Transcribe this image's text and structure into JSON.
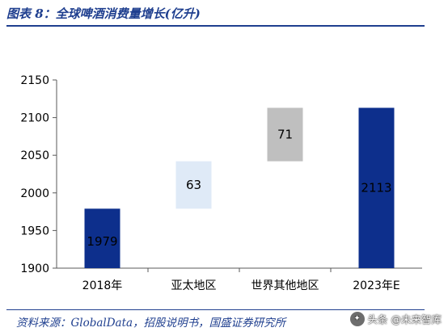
{
  "header": {
    "title": "图表 8：全球啤酒消费量增长(亿升)"
  },
  "footer": {
    "source": "资料来源：GlobalData，招股说明书，国盛证券研究所",
    "watermark": "头条 @未来智库"
  },
  "colors": {
    "title": "#1f3f8f",
    "base_bar": "#0d2f8c",
    "asia_pacific": "#dfeaf7",
    "other_regions": "#bfbfbf",
    "forecast_bar": "#0d2f8c"
  },
  "chart_data": {
    "type": "bar",
    "subtype": "waterfall",
    "title": "",
    "xlabel": "",
    "ylabel": "",
    "ylim": [
      1900,
      2150
    ],
    "yticks": [
      1900,
      1950,
      2000,
      2050,
      2100,
      2150
    ],
    "grid": false,
    "categories": [
      "2018年",
      "亚太地区",
      "世界其他地区",
      "2023年E"
    ],
    "bars": [
      {
        "category": "2018年",
        "kind": "total",
        "start": 1900,
        "end": 1979,
        "label": "1979",
        "color": "#0d2f8c"
      },
      {
        "category": "亚太地区",
        "kind": "increase",
        "start": 1979,
        "end": 2042,
        "label": "63",
        "color": "#dfeaf7"
      },
      {
        "category": "世界其他地区",
        "kind": "increase",
        "start": 2042,
        "end": 2113,
        "label": "71",
        "color": "#bfbfbf"
      },
      {
        "category": "2023年E",
        "kind": "total",
        "start": 1900,
        "end": 2113,
        "label": "2113",
        "color": "#0d2f8c"
      }
    ]
  }
}
